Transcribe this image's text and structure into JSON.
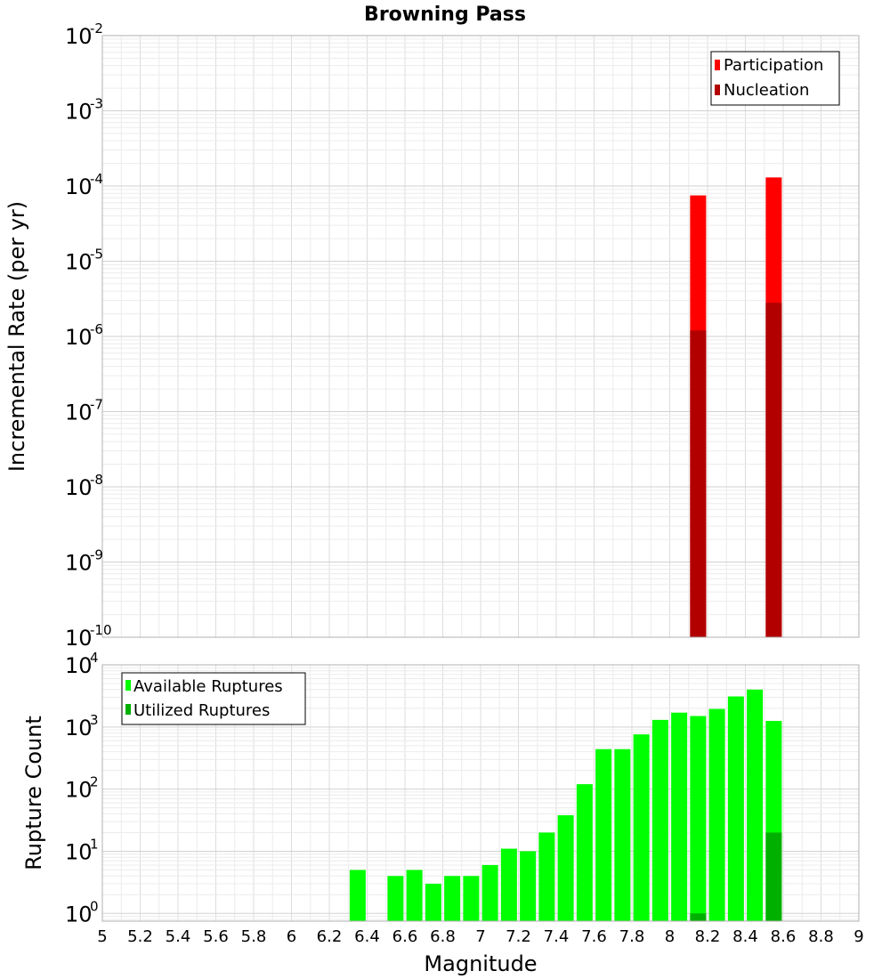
{
  "chart_data": [
    {
      "type": "bar",
      "title": "Browning Pass",
      "xlabel": "",
      "ylabel": "Incremental Rate (per yr)",
      "yscale": "log",
      "xlim": [
        5,
        9
      ],
      "ylim": [
        1e-10,
        0.01
      ],
      "yticks": [
        {
          "base": "10",
          "exp": "-10"
        },
        {
          "base": "10",
          "exp": "-9"
        },
        {
          "base": "10",
          "exp": "-8"
        },
        {
          "base": "10",
          "exp": "-7"
        },
        {
          "base": "10",
          "exp": "-6"
        },
        {
          "base": "10",
          "exp": "-5"
        },
        {
          "base": "10",
          "exp": "-4"
        },
        {
          "base": "10",
          "exp": "-3"
        },
        {
          "base": "10",
          "exp": "-2"
        }
      ],
      "legend_position": "top-right",
      "series": [
        {
          "name": "Participation",
          "color": "#ff0000",
          "points": [
            {
              "x": 8.15,
              "y": 7.5e-05
            },
            {
              "x": 8.55,
              "y": 0.00013
            }
          ]
        },
        {
          "name": "Nucleation",
          "color": "#b20000",
          "points": [
            {
              "x": 8.15,
              "y": 1.2e-06
            },
            {
              "x": 8.55,
              "y": 2.8e-06
            }
          ]
        }
      ]
    },
    {
      "type": "bar",
      "xlabel": "Magnitude",
      "ylabel": "Rupture Count",
      "yscale": "log",
      "xlim": [
        5,
        9
      ],
      "ylim": [
        0.75,
        10000
      ],
      "xticks": [
        "5",
        "5.2",
        "5.4",
        "5.6",
        "5.8",
        "6",
        "6.2",
        "6.4",
        "6.6",
        "6.8",
        "7",
        "7.2",
        "7.4",
        "7.6",
        "7.8",
        "8",
        "8.2",
        "8.4",
        "8.6",
        "8.8",
        "9"
      ],
      "yticks": [
        {
          "base": "10",
          "exp": "0"
        },
        {
          "base": "10",
          "exp": "1"
        },
        {
          "base": "10",
          "exp": "2"
        },
        {
          "base": "10",
          "exp": "3"
        },
        {
          "base": "10",
          "exp": "4"
        }
      ],
      "legend_position": "top-left",
      "series": [
        {
          "name": "Available Ruptures",
          "color": "#00ff00",
          "points": [
            {
              "x": 6.35,
              "y": 5
            },
            {
              "x": 6.55,
              "y": 4
            },
            {
              "x": 6.65,
              "y": 5
            },
            {
              "x": 6.75,
              "y": 3
            },
            {
              "x": 6.85,
              "y": 4
            },
            {
              "x": 6.95,
              "y": 4
            },
            {
              "x": 7.05,
              "y": 6
            },
            {
              "x": 7.15,
              "y": 11
            },
            {
              "x": 7.25,
              "y": 10
            },
            {
              "x": 7.35,
              "y": 20
            },
            {
              "x": 7.45,
              "y": 38
            },
            {
              "x": 7.55,
              "y": 120
            },
            {
              "x": 7.65,
              "y": 440
            },
            {
              "x": 7.75,
              "y": 440
            },
            {
              "x": 7.85,
              "y": 760
            },
            {
              "x": 7.95,
              "y": 1300
            },
            {
              "x": 8.05,
              "y": 1700
            },
            {
              "x": 8.15,
              "y": 1500
            },
            {
              "x": 8.25,
              "y": 1950
            },
            {
              "x": 8.35,
              "y": 3100
            },
            {
              "x": 8.45,
              "y": 4000
            },
            {
              "x": 8.55,
              "y": 1250
            }
          ]
        },
        {
          "name": "Utilized Ruptures",
          "color": "#00b000",
          "points": [
            {
              "x": 8.15,
              "y": 1
            },
            {
              "x": 8.55,
              "y": 20
            }
          ]
        }
      ]
    }
  ]
}
